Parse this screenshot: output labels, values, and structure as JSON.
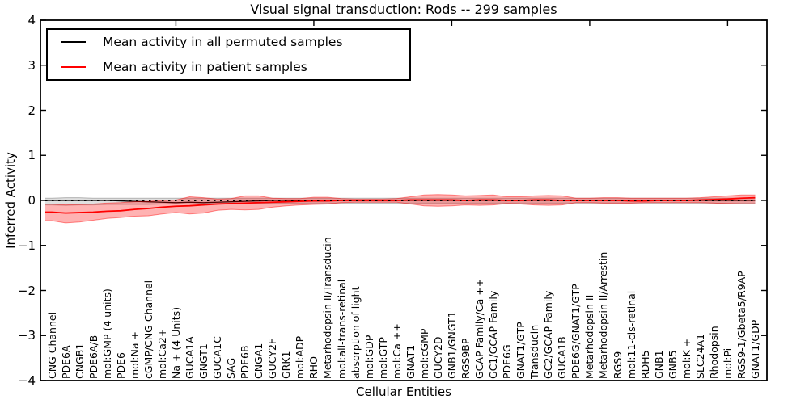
{
  "figure": {
    "title": "Visual signal transduction: Rods -- 299 samples"
  },
  "legend": {
    "entries": [
      {
        "label": "Mean activity in all permuted samples",
        "color": "#000000"
      },
      {
        "label": "Mean activity in patient samples",
        "color": "#ff0000"
      }
    ]
  },
  "chart_data": {
    "type": "line",
    "title": "Visual signal transduction: Rods -- 299 samples",
    "xlabel": "Cellular Entities",
    "ylabel": "Inferred Activity",
    "ylim": [
      -4,
      4
    ],
    "yticks": [
      4,
      3,
      2,
      1,
      0,
      -1,
      -2,
      -3,
      -4
    ],
    "ytick_labels": [
      "4",
      "3",
      "2",
      "1",
      "0",
      "−1",
      "−2",
      "−3",
      "−4"
    ],
    "x_major_tick_entities": [
      10,
      20,
      30,
      40,
      50
    ],
    "grid": false,
    "legend_position": "upper left",
    "zero_line": {
      "style": "dotted",
      "color": "#000000",
      "y": 0
    },
    "categories": [
      "CNG Channel",
      "PDE6A",
      "CNGB1",
      "PDE6A/B",
      "mol:GMP (4 units)",
      "PDE6",
      "mol:Na +",
      "cGMP/CNG Channel",
      "mol:Ca2+",
      "Na + (4 Units)",
      "GUCA1A",
      "GNGT1",
      "GUCA1C",
      "SAG",
      "PDE6B",
      "CNGA1",
      "GUCY2F",
      "GRK1",
      "mol:ADP",
      "RHO",
      "Metarhodopsin II/Transducin",
      "mol:all-trans-retinal",
      "absorption of light",
      "mol:GDP",
      "mol:GTP",
      "mol:Ca ++",
      "GNAT1",
      "mol:cGMP",
      "GUCY2D",
      "GNB1/GNGT1",
      "RGS9BP",
      "GCAP Family/Ca ++",
      "GC1/GCAP Family",
      "PDE6G",
      "GNAT1/GTP",
      "Transducin",
      "GC2/GCAP Family",
      "GUCA1B",
      "PDE6G/GNAT1/GTP",
      "Metarhodopsin II",
      "Metarhodopsin II/Arrestin",
      "RGS9",
      "mol:11-cis-retinal",
      "RDH5",
      "GNB1",
      "GNB5",
      "mol:K +",
      "SLC24A1",
      "Rhodopsin",
      "mol:Pi",
      "RGS9-1/Gbeta5/R9AP",
      "GNAT1/GDP"
    ],
    "series": [
      {
        "name": "Mean activity in all permuted samples",
        "color": "#000000",
        "band_fill": "rgba(0,0,0,0.12)",
        "band_edge": "rgba(0,0,0,0.25)",
        "values": [
          0,
          0,
          0,
          0,
          0,
          -0.01,
          -0.02,
          -0.03,
          -0.04,
          -0.05,
          -0.04,
          -0.05,
          -0.04,
          -0.03,
          -0.02,
          -0.01,
          0,
          0,
          0,
          0,
          0,
          0,
          0,
          0,
          0,
          0,
          0,
          0,
          0,
          0,
          0,
          0,
          0,
          0,
          0,
          0,
          0,
          0,
          0,
          0,
          0,
          0,
          0,
          0,
          0,
          0,
          0,
          0,
          0,
          0,
          0,
          0
        ],
        "band_low": [
          -0.1,
          -0.11,
          -0.1,
          -0.1,
          -0.09,
          -0.09,
          -0.09,
          -0.09,
          -0.08,
          -0.08,
          -0.08,
          -0.08,
          -0.07,
          -0.07,
          -0.07,
          -0.07,
          -0.06,
          -0.06,
          -0.06,
          -0.06,
          -0.06,
          -0.06,
          -0.06,
          -0.06,
          -0.06,
          -0.06,
          -0.06,
          -0.06,
          -0.06,
          -0.06,
          -0.06,
          -0.06,
          -0.06,
          -0.06,
          -0.06,
          -0.06,
          -0.06,
          -0.06,
          -0.06,
          -0.06,
          -0.06,
          -0.06,
          -0.06,
          -0.06,
          -0.06,
          -0.06,
          -0.06,
          -0.06,
          -0.06,
          -0.07,
          -0.07,
          -0.07
        ],
        "band_high": [
          0.05,
          0.06,
          0.06,
          0.05,
          0.05,
          0.05,
          0.05,
          0.05,
          0.05,
          0.05,
          0.05,
          0.05,
          0.05,
          0.05,
          0.05,
          0.05,
          0.05,
          0.05,
          0.05,
          0.05,
          0.05,
          0.05,
          0.05,
          0.05,
          0.05,
          0.05,
          0.05,
          0.05,
          0.05,
          0.05,
          0.05,
          0.05,
          0.05,
          0.05,
          0.05,
          0.05,
          0.05,
          0.05,
          0.05,
          0.05,
          0.05,
          0.05,
          0.05,
          0.05,
          0.05,
          0.05,
          0.05,
          0.05,
          0.05,
          0.05,
          0.05,
          0.05
        ]
      },
      {
        "name": "Mean activity in patient samples",
        "color": "#ff0000",
        "band_fill": "rgba(255,0,0,0.30)",
        "band_edge": "rgba(255,0,0,0.45)",
        "values": [
          -0.26,
          -0.28,
          -0.27,
          -0.26,
          -0.24,
          -0.23,
          -0.2,
          -0.18,
          -0.15,
          -0.13,
          -0.12,
          -0.1,
          -0.08,
          -0.07,
          -0.06,
          -0.05,
          -0.04,
          -0.03,
          -0.02,
          -0.01,
          -0.01,
          0,
          0,
          0,
          0,
          0,
          0.01,
          0.01,
          0.01,
          0.01,
          0,
          0.01,
          0.01,
          0,
          0,
          0.01,
          0.01,
          0,
          0,
          0,
          0,
          0,
          -0.01,
          -0.01,
          0,
          0,
          0,
          0.01,
          0.02,
          0.03,
          0.05,
          0.06
        ],
        "band_low": [
          -0.45,
          -0.5,
          -0.48,
          -0.44,
          -0.4,
          -0.38,
          -0.35,
          -0.34,
          -0.3,
          -0.27,
          -0.3,
          -0.28,
          -0.22,
          -0.2,
          -0.21,
          -0.2,
          -0.15,
          -0.12,
          -0.1,
          -0.09,
          -0.08,
          -0.05,
          -0.04,
          -0.04,
          -0.04,
          -0.04,
          -0.08,
          -0.12,
          -0.13,
          -0.12,
          -0.1,
          -0.11,
          -0.1,
          -0.07,
          -0.08,
          -0.1,
          -0.11,
          -0.1,
          -0.05,
          -0.05,
          -0.06,
          -0.06,
          -0.06,
          -0.05,
          -0.05,
          -0.05,
          -0.05,
          -0.05,
          -0.06,
          -0.07,
          -0.08,
          -0.08
        ],
        "band_high": [
          -0.08,
          -0.1,
          -0.09,
          -0.08,
          -0.06,
          -0.05,
          -0.03,
          -0.02,
          0.0,
          0.01,
          0.08,
          0.06,
          0.03,
          0.04,
          0.1,
          0.1,
          0.05,
          0.04,
          0.04,
          0.07,
          0.07,
          0.04,
          0.03,
          0.03,
          0.03,
          0.04,
          0.08,
          0.12,
          0.13,
          0.12,
          0.1,
          0.11,
          0.12,
          0.08,
          0.08,
          0.1,
          0.11,
          0.1,
          0.05,
          0.05,
          0.06,
          0.06,
          0.05,
          0.05,
          0.05,
          0.05,
          0.05,
          0.06,
          0.08,
          0.1,
          0.12,
          0.12
        ]
      }
    ]
  }
}
